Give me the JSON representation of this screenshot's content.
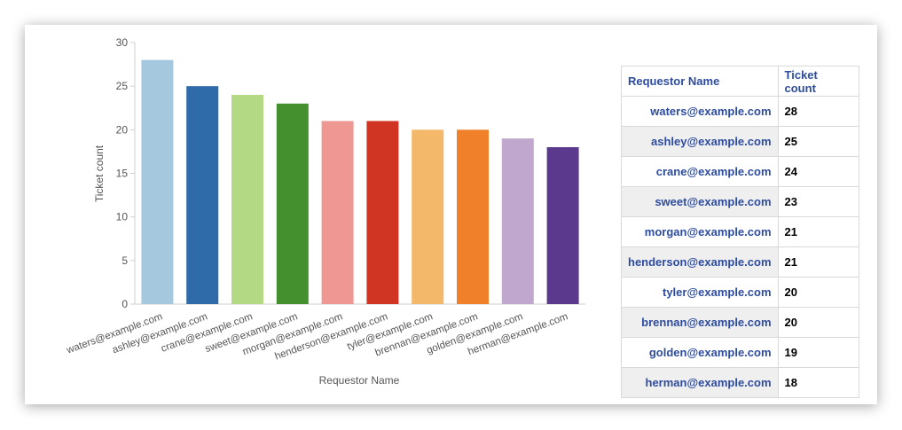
{
  "colors": {
    "bars": [
      "#a6c8df",
      "#2f6aa9",
      "#b3d985",
      "#44902f",
      "#ef9893",
      "#d03422",
      "#f3b869",
      "#f0802a",
      "#bfa7cd",
      "#5b3a8d"
    ],
    "axis_text": "#555555",
    "table_header": "#2e4c9e"
  },
  "chart_data": {
    "type": "bar",
    "title": "",
    "xlabel": "Requestor Name",
    "ylabel": "Ticket count",
    "ylim": [
      0,
      30
    ],
    "yticks": [
      "0",
      "5",
      "10",
      "15",
      "20",
      "25",
      "30"
    ],
    "categories": [
      "waters@example.com",
      "ashley@example.com",
      "crane@example.com",
      "sweet@example.com",
      "morgan@example.com",
      "henderson@example.com",
      "tyler@example.com",
      "brennan@example.com",
      "golden@example.com",
      "herman@example.com"
    ],
    "values": [
      28,
      25,
      24,
      23,
      21,
      21,
      20,
      20,
      19,
      18
    ],
    "grid": false
  },
  "table": {
    "headers": [
      "Requestor Name",
      "Ticket count"
    ],
    "rows": [
      {
        "name": "waters@example.com",
        "count": "28"
      },
      {
        "name": "ashley@example.com",
        "count": "25"
      },
      {
        "name": "crane@example.com",
        "count": "24"
      },
      {
        "name": "sweet@example.com",
        "count": "23"
      },
      {
        "name": "morgan@example.com",
        "count": "21"
      },
      {
        "name": "henderson@example.com",
        "count": "21"
      },
      {
        "name": "tyler@example.com",
        "count": "20"
      },
      {
        "name": "brennan@example.com",
        "count": "20"
      },
      {
        "name": "golden@example.com",
        "count": "19"
      },
      {
        "name": "herman@example.com",
        "count": "18"
      }
    ]
  }
}
